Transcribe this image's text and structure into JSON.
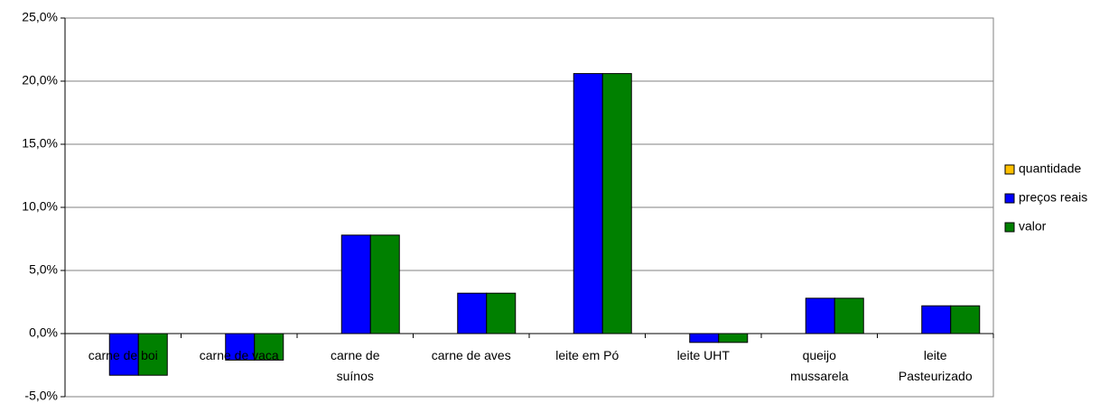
{
  "chart_data": {
    "type": "bar",
    "categories": [
      "carne de boi",
      "carne de vaca",
      "carne de\nsuínos",
      "carne de aves",
      "leite em Pó",
      "leite UHT",
      "queijo\nmussarela",
      "leite\nPasteurizado"
    ],
    "series": [
      {
        "name": "quantidade",
        "color": "#ffc000",
        "values": [
          0,
          0,
          0,
          0,
          0,
          0,
          0,
          0
        ]
      },
      {
        "name": "preços reais",
        "color": "#0000ff",
        "values": [
          -3.3,
          -2.1,
          7.8,
          3.2,
          20.6,
          -0.7,
          2.8,
          2.2
        ]
      },
      {
        "name": "valor",
        "color": "#008000",
        "values": [
          -3.3,
          -2.1,
          7.8,
          3.2,
          20.6,
          -0.7,
          2.8,
          2.2
        ]
      }
    ],
    "ylim": [
      -5,
      25
    ],
    "yticks": [
      {
        "value": -5,
        "label": "-5,0%"
      },
      {
        "value": 0,
        "label": "0,0%"
      },
      {
        "value": 5,
        "label": "5,0%"
      },
      {
        "value": 10,
        "label": "10,0%"
      },
      {
        "value": 15,
        "label": "15,0%"
      },
      {
        "value": 20,
        "label": "20,0%"
      },
      {
        "value": 25,
        "label": "25,0%"
      }
    ],
    "grid": true,
    "legend": "right"
  }
}
